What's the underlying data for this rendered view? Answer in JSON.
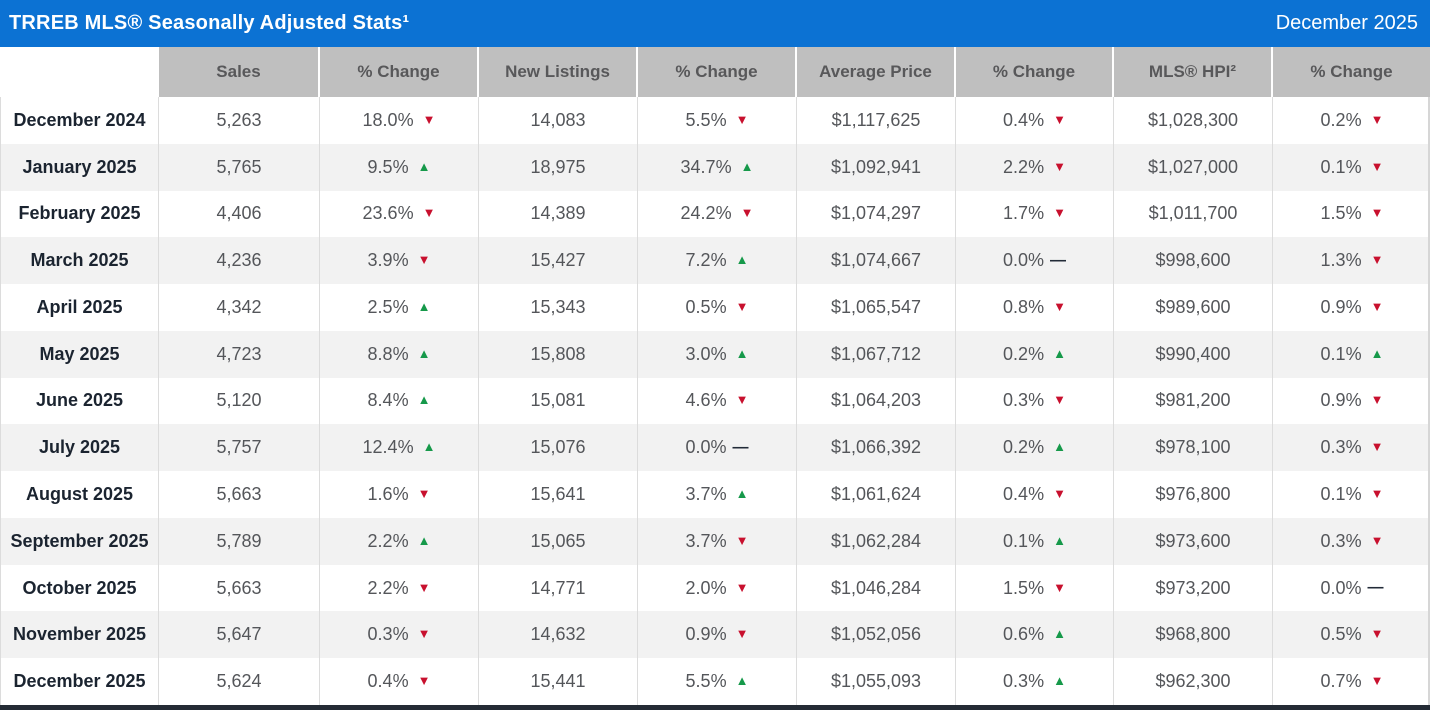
{
  "header": {
    "title": "TRREB MLS® Seasonally Adjusted Stats¹",
    "period": "December 2025"
  },
  "arrows": {
    "up": "▲",
    "down": "▼",
    "flat": "—"
  },
  "colors": {
    "header_blue": "#0C72D3",
    "column_header_gray": "#BFBFBF",
    "alt_row_gray": "#F2F2F2",
    "up_green": "#16994A",
    "down_red": "#C8102E",
    "month_text": "#1B2430",
    "value_text": "#54565A",
    "bottom_bar": "#242B35"
  },
  "table": {
    "columns": [
      "",
      "Sales",
      "% Change",
      "New Listings",
      "% Change",
      "Average Price",
      "% Change",
      "MLS® HPI²",
      "% Change"
    ],
    "rows": [
      {
        "month": "December 2024",
        "cells": [
          {
            "v": "5,263"
          },
          {
            "v": "18.0%",
            "d": "down"
          },
          {
            "v": "14,083"
          },
          {
            "v": "5.5%",
            "d": "down"
          },
          {
            "v": "$1,117,625"
          },
          {
            "v": "0.4%",
            "d": "down"
          },
          {
            "v": "$1,028,300"
          },
          {
            "v": "0.2%",
            "d": "down"
          }
        ]
      },
      {
        "month": "January 2025",
        "cells": [
          {
            "v": "5,765"
          },
          {
            "v": "9.5%",
            "d": "up"
          },
          {
            "v": "18,975"
          },
          {
            "v": "34.7%",
            "d": "up"
          },
          {
            "v": "$1,092,941"
          },
          {
            "v": "2.2%",
            "d": "down"
          },
          {
            "v": "$1,027,000"
          },
          {
            "v": "0.1%",
            "d": "down"
          }
        ]
      },
      {
        "month": "February 2025",
        "cells": [
          {
            "v": "4,406"
          },
          {
            "v": "23.6%",
            "d": "down"
          },
          {
            "v": "14,389"
          },
          {
            "v": "24.2%",
            "d": "down"
          },
          {
            "v": "$1,074,297"
          },
          {
            "v": "1.7%",
            "d": "down"
          },
          {
            "v": "$1,011,700"
          },
          {
            "v": "1.5%",
            "d": "down"
          }
        ]
      },
      {
        "month": "March 2025",
        "cells": [
          {
            "v": "4,236"
          },
          {
            "v": "3.9%",
            "d": "down"
          },
          {
            "v": "15,427"
          },
          {
            "v": "7.2%",
            "d": "up"
          },
          {
            "v": "$1,074,667"
          },
          {
            "v": "0.0%",
            "d": "flat"
          },
          {
            "v": "$998,600"
          },
          {
            "v": "1.3%",
            "d": "down"
          }
        ]
      },
      {
        "month": "April 2025",
        "cells": [
          {
            "v": "4,342"
          },
          {
            "v": "2.5%",
            "d": "up"
          },
          {
            "v": "15,343"
          },
          {
            "v": "0.5%",
            "d": "down"
          },
          {
            "v": "$1,065,547"
          },
          {
            "v": "0.8%",
            "d": "down"
          },
          {
            "v": "$989,600"
          },
          {
            "v": "0.9%",
            "d": "down"
          }
        ]
      },
      {
        "month": "May 2025",
        "cells": [
          {
            "v": "4,723"
          },
          {
            "v": "8.8%",
            "d": "up"
          },
          {
            "v": "15,808"
          },
          {
            "v": "3.0%",
            "d": "up"
          },
          {
            "v": "$1,067,712"
          },
          {
            "v": "0.2%",
            "d": "up"
          },
          {
            "v": "$990,400"
          },
          {
            "v": "0.1%",
            "d": "up"
          }
        ]
      },
      {
        "month": "June 2025",
        "cells": [
          {
            "v": "5,120"
          },
          {
            "v": "8.4%",
            "d": "up"
          },
          {
            "v": "15,081"
          },
          {
            "v": "4.6%",
            "d": "down"
          },
          {
            "v": "$1,064,203"
          },
          {
            "v": "0.3%",
            "d": "down"
          },
          {
            "v": "$981,200"
          },
          {
            "v": "0.9%",
            "d": "down"
          }
        ]
      },
      {
        "month": "July 2025",
        "cells": [
          {
            "v": "5,757"
          },
          {
            "v": "12.4%",
            "d": "up"
          },
          {
            "v": "15,076"
          },
          {
            "v": "0.0%",
            "d": "flat"
          },
          {
            "v": "$1,066,392"
          },
          {
            "v": "0.2%",
            "d": "up"
          },
          {
            "v": "$978,100"
          },
          {
            "v": "0.3%",
            "d": "down"
          }
        ]
      },
      {
        "month": "August 2025",
        "cells": [
          {
            "v": "5,663"
          },
          {
            "v": "1.6%",
            "d": "down"
          },
          {
            "v": "15,641"
          },
          {
            "v": "3.7%",
            "d": "up"
          },
          {
            "v": "$1,061,624"
          },
          {
            "v": "0.4%",
            "d": "down"
          },
          {
            "v": "$976,800"
          },
          {
            "v": "0.1%",
            "d": "down"
          }
        ]
      },
      {
        "month": "September 2025",
        "cells": [
          {
            "v": "5,789"
          },
          {
            "v": "2.2%",
            "d": "up"
          },
          {
            "v": "15,065"
          },
          {
            "v": "3.7%",
            "d": "down"
          },
          {
            "v": "$1,062,284"
          },
          {
            "v": "0.1%",
            "d": "up"
          },
          {
            "v": "$973,600"
          },
          {
            "v": "0.3%",
            "d": "down"
          }
        ]
      },
      {
        "month": "October 2025",
        "cells": [
          {
            "v": "5,663"
          },
          {
            "v": "2.2%",
            "d": "down"
          },
          {
            "v": "14,771"
          },
          {
            "v": "2.0%",
            "d": "down"
          },
          {
            "v": "$1,046,284"
          },
          {
            "v": "1.5%",
            "d": "down"
          },
          {
            "v": "$973,200"
          },
          {
            "v": "0.0%",
            "d": "flat"
          }
        ]
      },
      {
        "month": "November 2025",
        "cells": [
          {
            "v": "5,647"
          },
          {
            "v": "0.3%",
            "d": "down"
          },
          {
            "v": "14,632"
          },
          {
            "v": "0.9%",
            "d": "down"
          },
          {
            "v": "$1,052,056"
          },
          {
            "v": "0.6%",
            "d": "up"
          },
          {
            "v": "$968,800"
          },
          {
            "v": "0.5%",
            "d": "down"
          }
        ]
      },
      {
        "month": "December 2025",
        "cells": [
          {
            "v": "5,624"
          },
          {
            "v": "0.4%",
            "d": "down"
          },
          {
            "v": "15,441"
          },
          {
            "v": "5.5%",
            "d": "up"
          },
          {
            "v": "$1,055,093"
          },
          {
            "v": "0.3%",
            "d": "up"
          },
          {
            "v": "$962,300"
          },
          {
            "v": "0.7%",
            "d": "down"
          }
        ]
      }
    ]
  },
  "chart_data": {
    "type": "table",
    "title": "TRREB MLS® Seasonally Adjusted Stats",
    "period": "December 2025",
    "categories": [
      "December 2024",
      "January 2025",
      "February 2025",
      "March 2025",
      "April 2025",
      "May 2025",
      "June 2025",
      "July 2025",
      "August 2025",
      "September 2025",
      "October 2025",
      "November 2025",
      "December 2025"
    ],
    "series": [
      {
        "name": "Sales",
        "values": [
          5263,
          5765,
          4406,
          4236,
          4342,
          4723,
          5120,
          5757,
          5663,
          5789,
          5663,
          5647,
          5624
        ]
      },
      {
        "name": "Sales % Change",
        "values": [
          -18.0,
          9.5,
          -23.6,
          -3.9,
          2.5,
          8.8,
          8.4,
          12.4,
          -1.6,
          2.2,
          -2.2,
          -0.3,
          -0.4
        ]
      },
      {
        "name": "New Listings",
        "values": [
          14083,
          18975,
          14389,
          15427,
          15343,
          15808,
          15081,
          15076,
          15641,
          15065,
          14771,
          14632,
          15441
        ]
      },
      {
        "name": "New Listings % Change",
        "values": [
          -5.5,
          34.7,
          -24.2,
          7.2,
          -0.5,
          3.0,
          -4.6,
          0.0,
          3.7,
          -3.7,
          -2.0,
          -0.9,
          5.5
        ]
      },
      {
        "name": "Average Price",
        "values": [
          1117625,
          1092941,
          1074297,
          1074667,
          1065547,
          1067712,
          1064203,
          1066392,
          1061624,
          1062284,
          1046284,
          1052056,
          1055093
        ]
      },
      {
        "name": "Average Price % Change",
        "values": [
          -0.4,
          -2.2,
          -1.7,
          0.0,
          -0.8,
          0.2,
          -0.3,
          0.2,
          -0.4,
          0.1,
          -1.5,
          0.6,
          0.3
        ]
      },
      {
        "name": "MLS® HPI",
        "values": [
          1028300,
          1027000,
          1011700,
          998600,
          989600,
          990400,
          981200,
          978100,
          976800,
          973600,
          973200,
          968800,
          962300
        ]
      },
      {
        "name": "MLS® HPI % Change",
        "values": [
          -0.2,
          -0.1,
          -1.5,
          -1.3,
          -0.9,
          0.1,
          -0.9,
          -0.3,
          -0.1,
          -0.3,
          0.0,
          -0.5,
          -0.7
        ]
      }
    ]
  }
}
